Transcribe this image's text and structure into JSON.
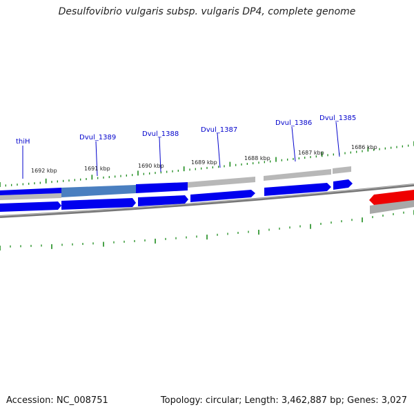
{
  "title": "Desulfovibrio vulgaris subsp. vulgaris DP4, complete genome",
  "footer": {
    "accession": "Accession: NC_008751",
    "summary": "Topology: circular; Length: 3,462,887 bp; Genes: 3,027"
  },
  "colors": {
    "cds_forward": "#0000ee",
    "cds_highlight": "#4a7fc0",
    "other_feature": "#b8b8b8",
    "cds_reverse_highlight": "#ee0000",
    "backbone": "#777777",
    "tick": "#1a8a1a",
    "label": "#0000cc"
  },
  "scale_labels": [
    "1692 kbp",
    "1691 kbp",
    "1690 kbp",
    "1689 kbp",
    "1688 kbp",
    "1687 kbp",
    "1686 kbp"
  ],
  "gene_labels": [
    "thiH",
    "Dvul_1389",
    "Dvul_1388",
    "Dvul_1387",
    "Dvul_1386",
    "Dvul_1385"
  ]
}
